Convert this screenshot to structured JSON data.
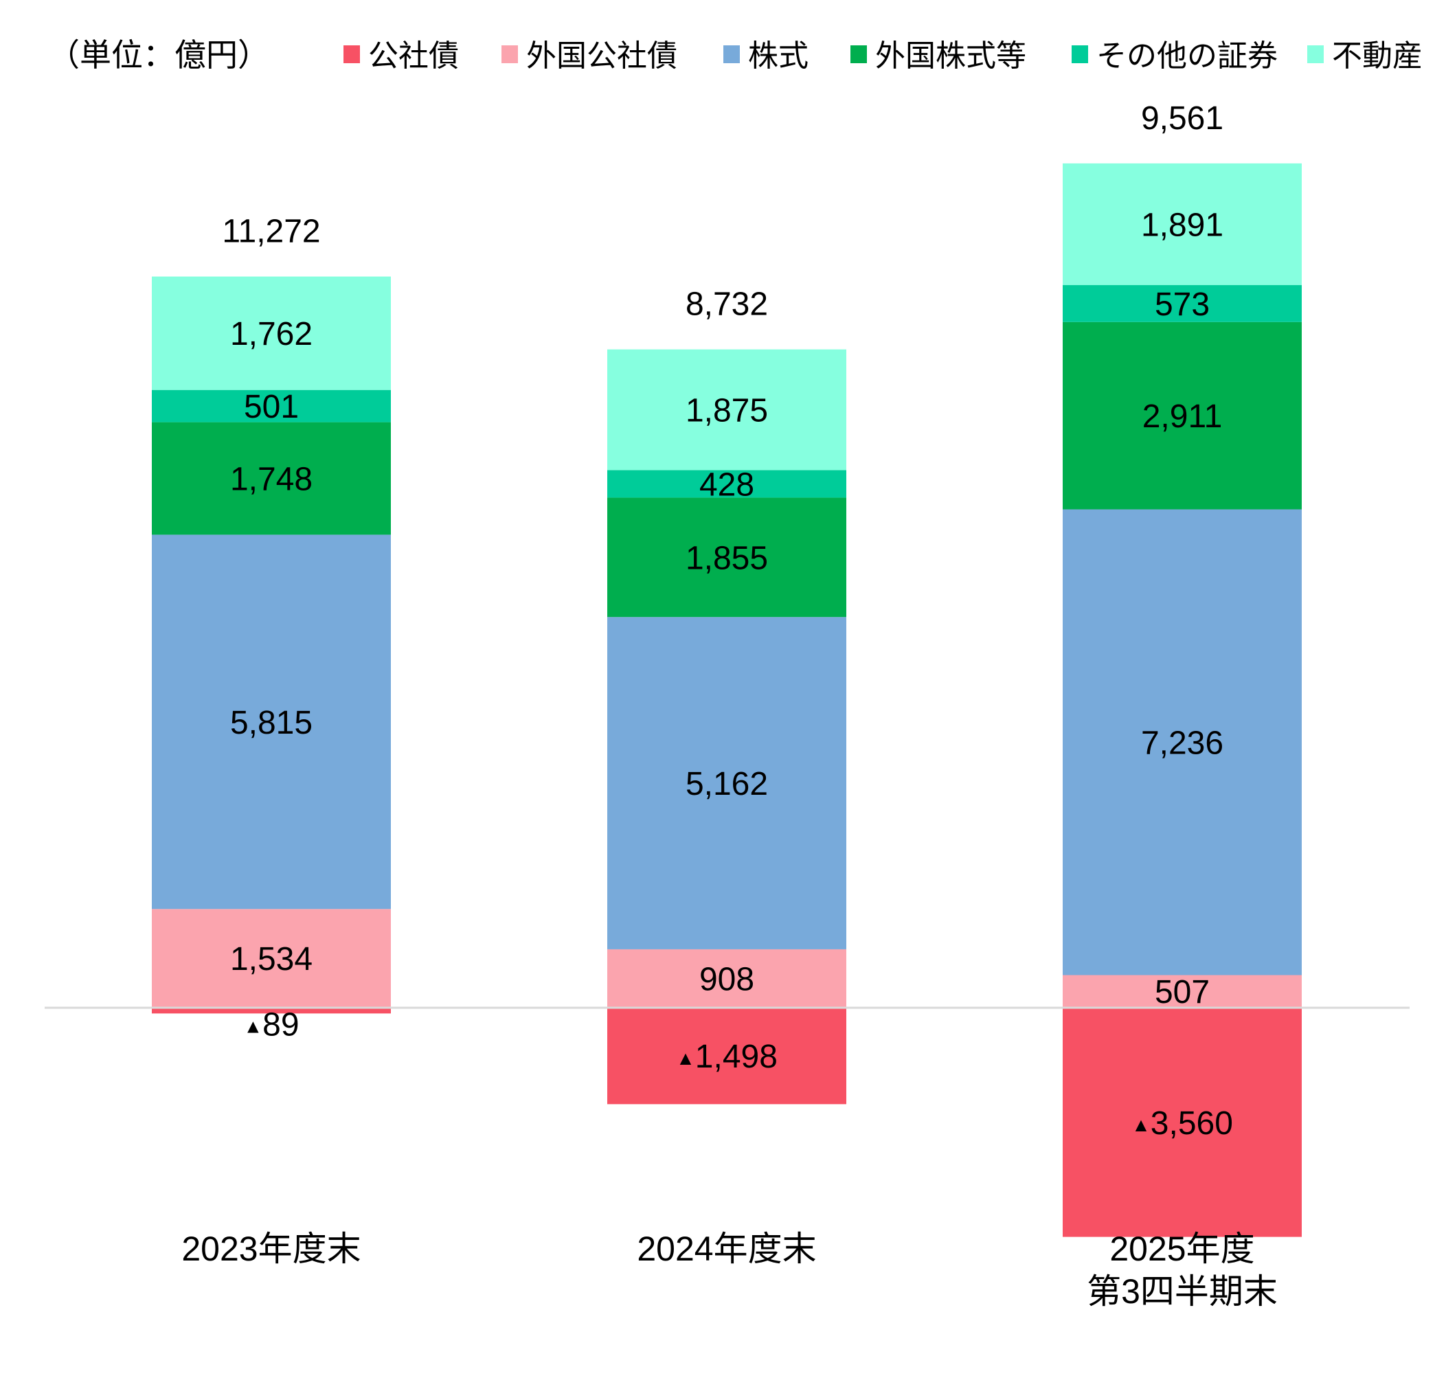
{
  "chart_data": {
    "type": "bar",
    "stacked": true,
    "unit_label": "（単位：億円）",
    "categories": [
      [
        "2023年度末"
      ],
      [
        "2024年度末"
      ],
      [
        "2025年度",
        "第3四半期末"
      ]
    ],
    "series": [
      {
        "name": "公社債",
        "color": "#F75164",
        "values": [
          -89,
          -1498,
          -3560
        ]
      },
      {
        "name": "外国公社債",
        "color": "#FBA4AE",
        "values": [
          1534,
          908,
          507
        ]
      },
      {
        "name": "株式",
        "color": "#78AADA",
        "values": [
          5815,
          5162,
          7236
        ]
      },
      {
        "name": "外国株式等",
        "color": "#00AE4E",
        "values": [
          1748,
          1855,
          2911
        ]
      },
      {
        "name": "その他の証券",
        "color": "#00CC99",
        "values": [
          501,
          428,
          573
        ]
      },
      {
        "name": "不動産",
        "color": "#86FFDF",
        "values": [
          1762,
          1875,
          1891
        ]
      }
    ],
    "totals": [
      "11,272",
      "8,732",
      "9,561"
    ],
    "negative_prefix": "▲",
    "legend_position": "top",
    "grid": false
  }
}
